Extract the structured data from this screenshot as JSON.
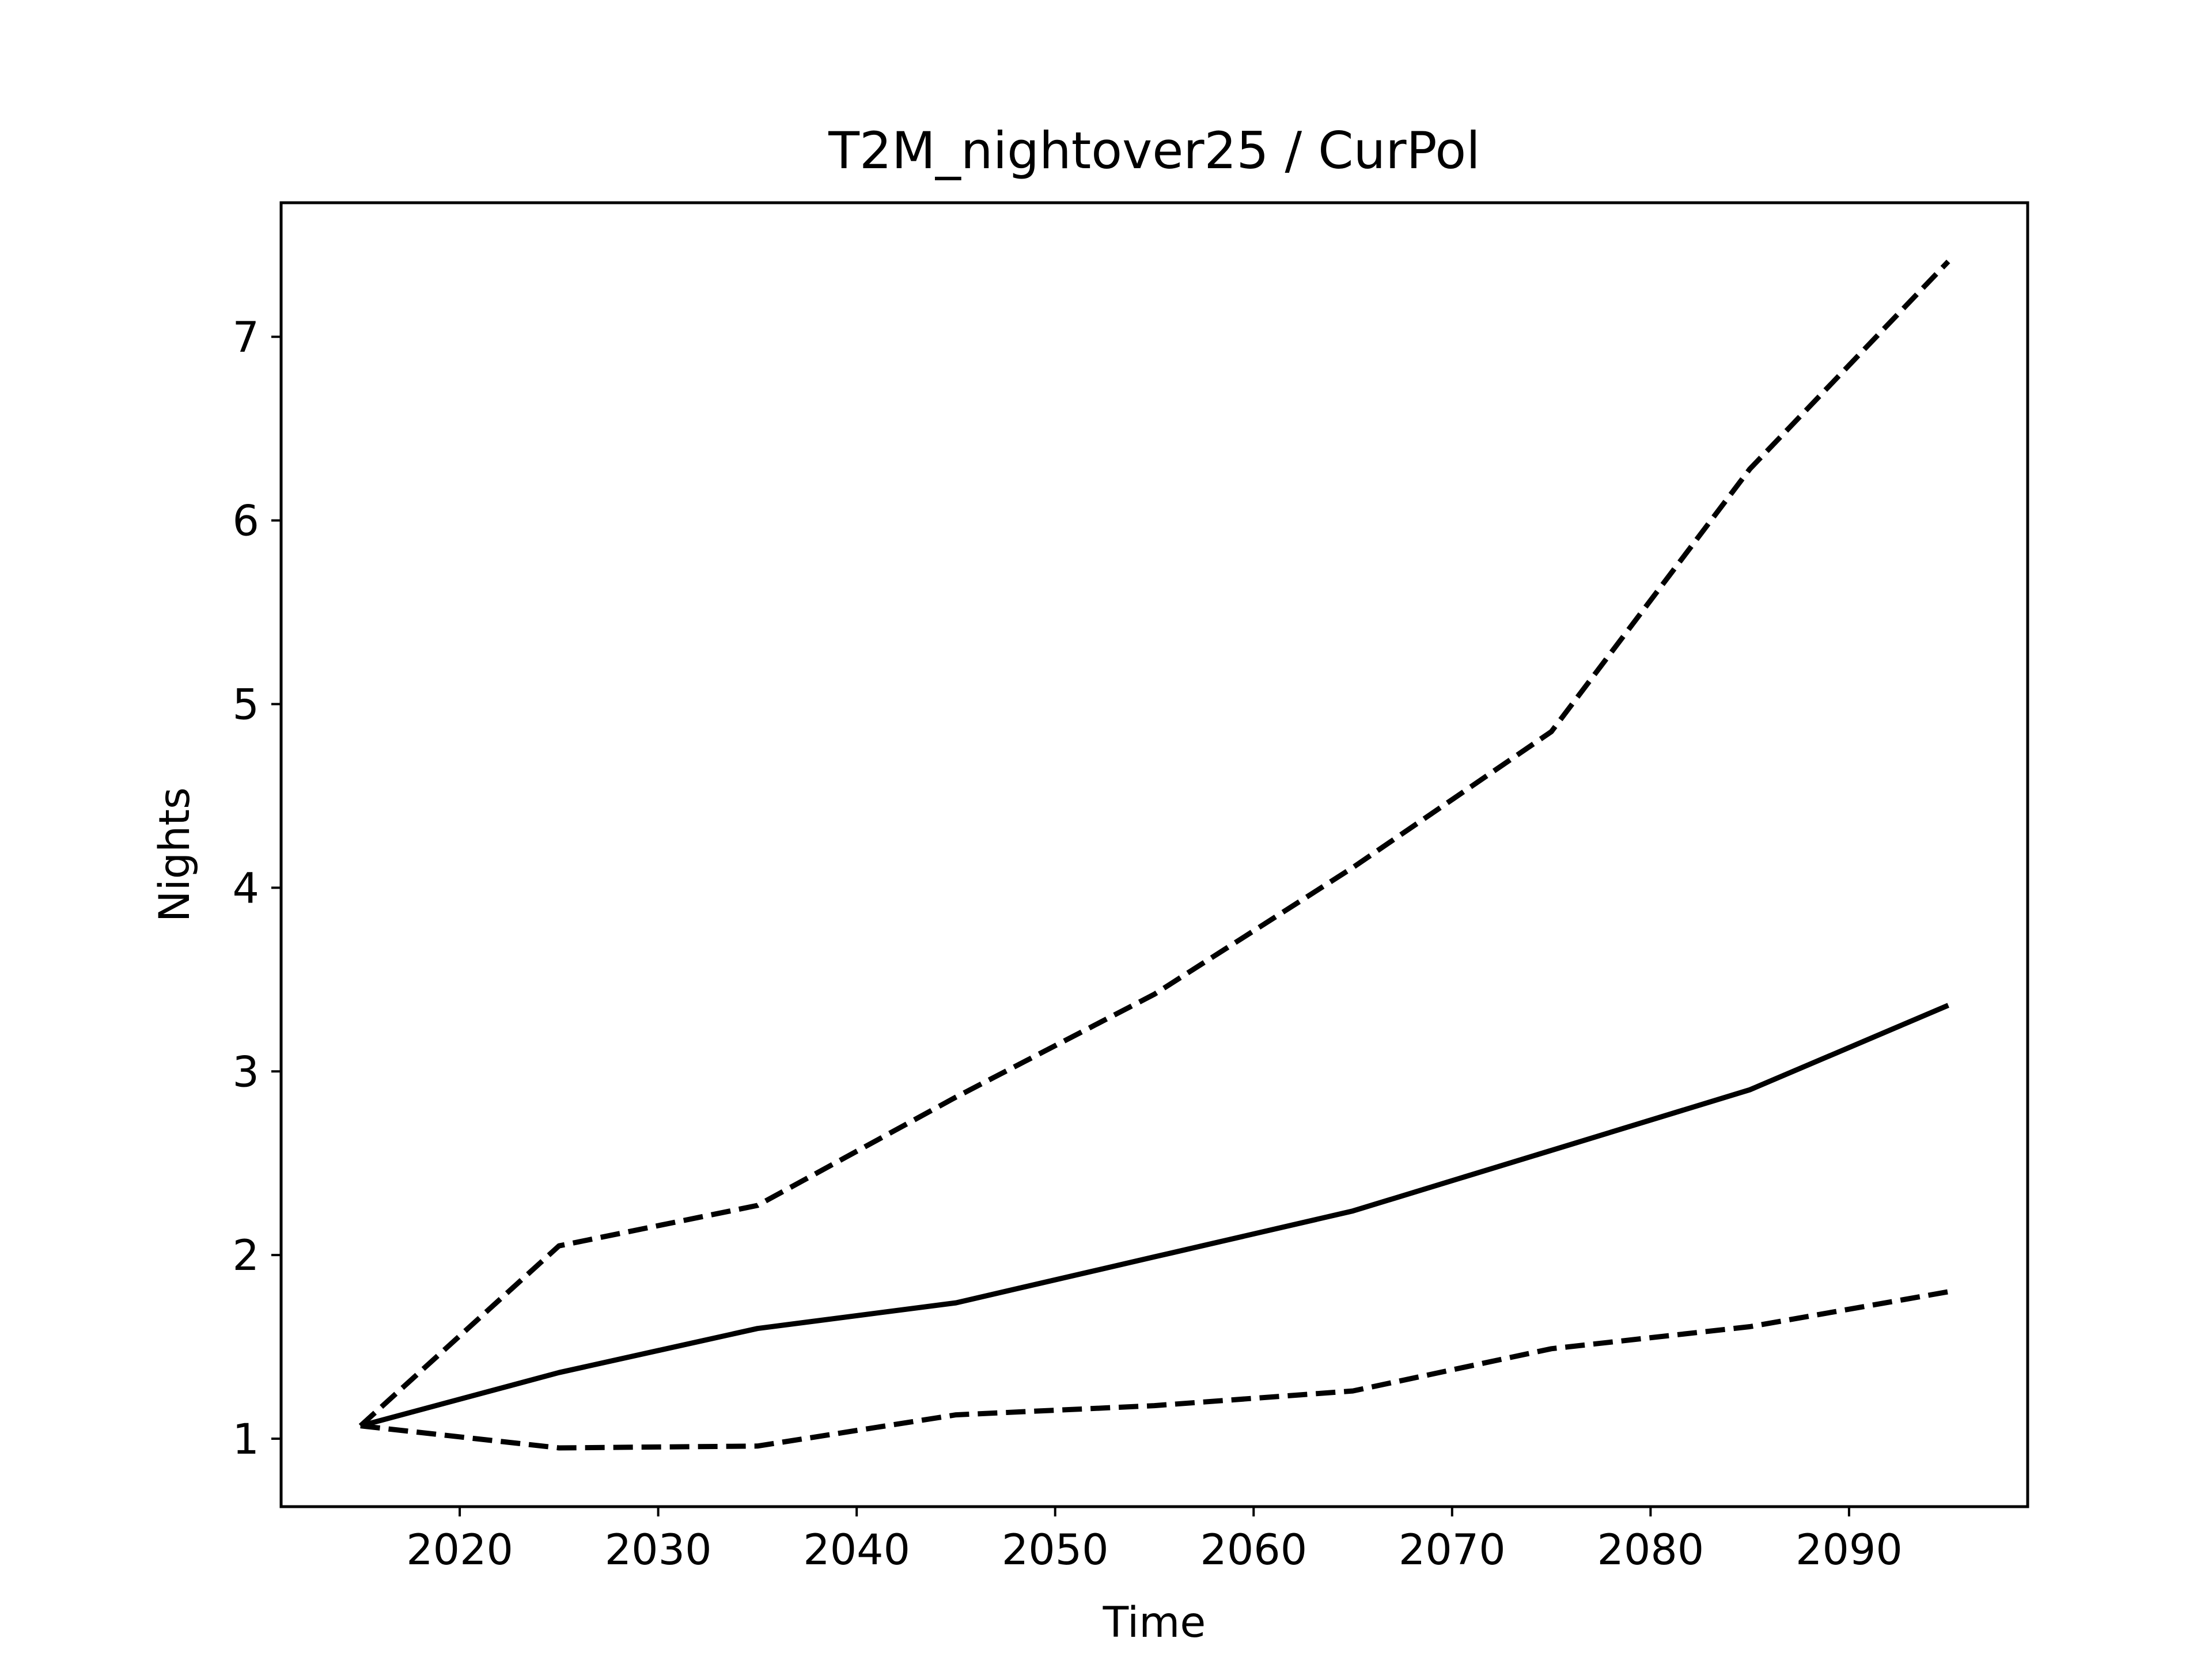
{
  "chart_data": {
    "type": "line",
    "title": "T2M_nightover25 / CurPol",
    "xlabel": "Time",
    "ylabel": "Nights",
    "xlim": [
      2011,
      2099
    ],
    "ylim": [
      0.63,
      7.73
    ],
    "xticks": [
      2020,
      2030,
      2040,
      2050,
      2060,
      2070,
      2080,
      2090
    ],
    "yticks": [
      1,
      2,
      3,
      4,
      5,
      6,
      7
    ],
    "grid": false,
    "legend": "none",
    "x": [
      2015,
      2025,
      2035,
      2045,
      2055,
      2065,
      2075,
      2085,
      2095
    ],
    "series": [
      {
        "style": "solid",
        "color": "#000000",
        "values": [
          1.07,
          1.36,
          1.6,
          1.74,
          1.99,
          2.24,
          2.57,
          2.9,
          3.36
        ]
      },
      {
        "style": "dashed",
        "color": "#000000",
        "values": [
          1.07,
          2.05,
          2.27,
          2.86,
          3.42,
          4.11,
          4.85,
          6.28,
          7.41
        ]
      },
      {
        "style": "dashed",
        "color": "#000000",
        "values": [
          1.07,
          0.95,
          0.96,
          1.13,
          1.18,
          1.26,
          1.49,
          1.61,
          1.8
        ]
      }
    ]
  }
}
